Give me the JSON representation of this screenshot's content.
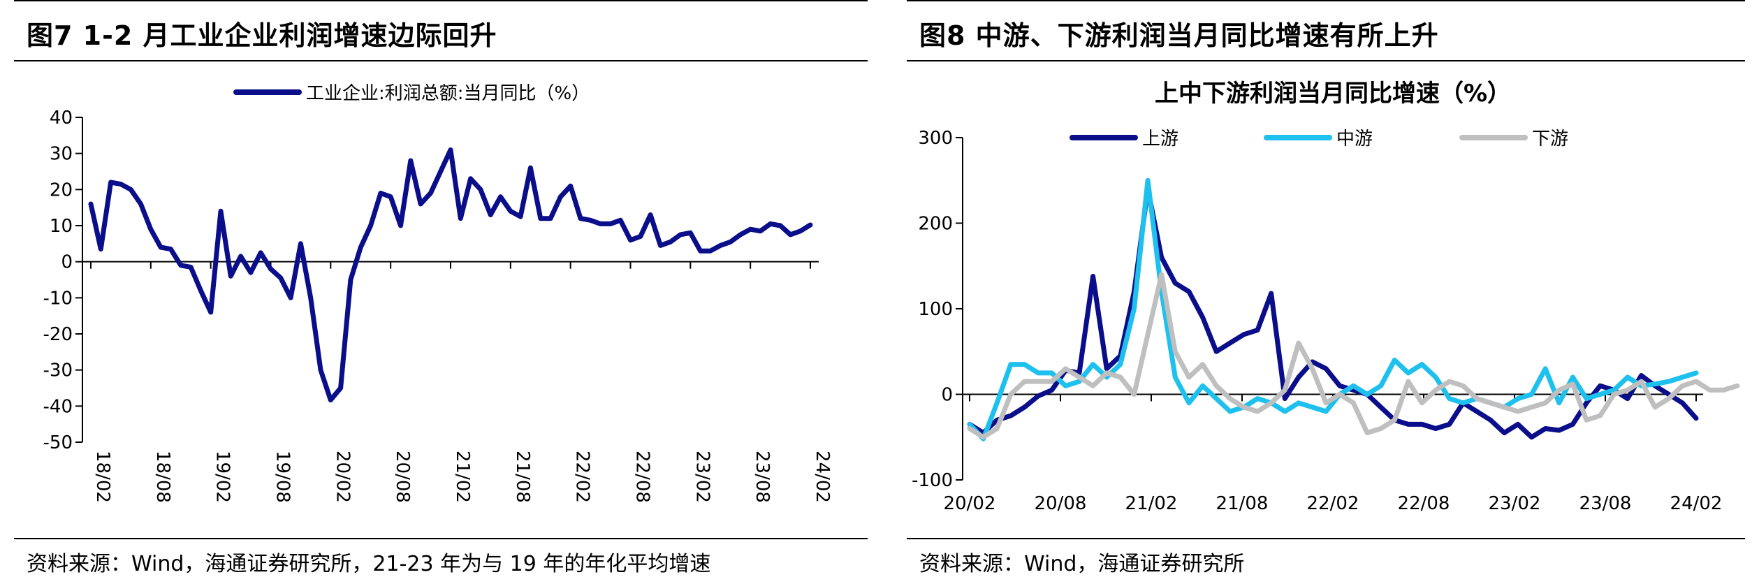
{
  "figures": {
    "left": {
      "title": "图7   1-2 月工业企业利润增速边际回升",
      "source": "资料来源：Wind，海通证券研究所，21-23 年为与 19 年的年化平均增速"
    },
    "right": {
      "title": "图8   中游、下游利润当月同比增速有所上升",
      "source": "资料来源：Wind，海通证券研究所"
    }
  },
  "chart_data": [
    {
      "type": "line",
      "title": "",
      "legend_position": "top",
      "ylim": [
        -50,
        40
      ],
      "yticks": [
        -50,
        -40,
        -30,
        -20,
        -10,
        0,
        10,
        20,
        30,
        40
      ],
      "x_ticks": [
        "18/02",
        "18/08",
        "19/02",
        "19/08",
        "20/02",
        "20/08",
        "21/02",
        "21/08",
        "22/02",
        "22/08",
        "23/02",
        "23/08",
        "24/02"
      ],
      "series": [
        {
          "name": "工业企业:利润总额:当月同比（%）",
          "color": "#0a0e8a",
          "values": [
            16,
            3.5,
            22,
            21.5,
            20,
            16,
            9,
            4,
            3.5,
            -1,
            -1.5,
            -8,
            -14,
            14,
            -4,
            1.5,
            -3,
            2.5,
            -2,
            -4.5,
            -10,
            5,
            -10,
            -30,
            -38.3,
            -35,
            -5,
            4,
            10,
            19,
            18,
            10,
            28,
            16,
            19,
            25,
            31,
            12,
            23,
            20,
            13,
            18,
            14,
            12.5,
            26,
            12,
            12,
            18,
            21,
            12,
            11.5,
            10.5,
            10.5,
            11.5,
            6,
            7,
            13,
            4.5,
            5.5,
            7.5,
            8,
            3,
            3,
            4.5,
            5.5,
            7.5,
            9,
            8.5,
            10.5,
            10,
            7.5,
            8.5,
            10.2
          ]
        }
      ]
    },
    {
      "type": "line",
      "title": "上中下游利润当月同比增速（%）",
      "legend_position": "top",
      "ylim": [
        -100,
        300
      ],
      "yticks": [
        -100,
        0,
        100,
        200,
        300
      ],
      "x_ticks": [
        "20/02",
        "20/08",
        "21/02",
        "21/08",
        "22/02",
        "22/08",
        "23/02",
        "23/08",
        "24/02"
      ],
      "series": [
        {
          "name": "上游",
          "color": "#0a0e8a",
          "values": [
            -35,
            -45,
            -30,
            -25,
            -15,
            -2,
            5,
            28,
            25,
            138,
            30,
            45,
            120,
            240,
            160,
            130,
            120,
            90,
            50,
            60,
            70,
            75,
            118,
            -5,
            20,
            38,
            30,
            10,
            5,
            0,
            -15,
            -30,
            -35,
            -35,
            -40,
            -35,
            -10,
            -20,
            -30,
            -45,
            -35,
            -50,
            -40,
            -42,
            -35,
            -10,
            10,
            5,
            -5,
            22,
            10,
            0,
            -10,
            -28
          ]
        },
        {
          "name": "中游",
          "color": "#1ec0ee",
          "values": [
            -35,
            -52,
            -10,
            35,
            35,
            25,
            25,
            10,
            15,
            35,
            20,
            35,
            100,
            250,
            120,
            20,
            -10,
            10,
            -5,
            -20,
            -15,
            -5,
            -10,
            -20,
            -10,
            -15,
            -20,
            0,
            10,
            0,
            10,
            40,
            25,
            35,
            20,
            -5,
            -10,
            -5,
            -10,
            -15,
            -5,
            0,
            30,
            -10,
            20,
            -5,
            0,
            5,
            20,
            10,
            12,
            15,
            20,
            25
          ]
        },
        {
          "name": "下游",
          "color": "#bfbfbf",
          "values": [
            -40,
            -50,
            -40,
            0,
            15,
            15,
            15,
            30,
            20,
            10,
            25,
            20,
            0,
            70,
            140,
            50,
            20,
            35,
            10,
            -5,
            -15,
            -20,
            -10,
            5,
            60,
            30,
            -10,
            0,
            -10,
            -45,
            -40,
            -30,
            15,
            -10,
            5,
            15,
            10,
            -5,
            -10,
            -15,
            -20,
            -15,
            -10,
            5,
            12,
            -30,
            -25,
            0,
            5,
            15,
            -15,
            -5,
            10,
            15,
            5,
            5,
            10
          ]
        }
      ]
    }
  ]
}
